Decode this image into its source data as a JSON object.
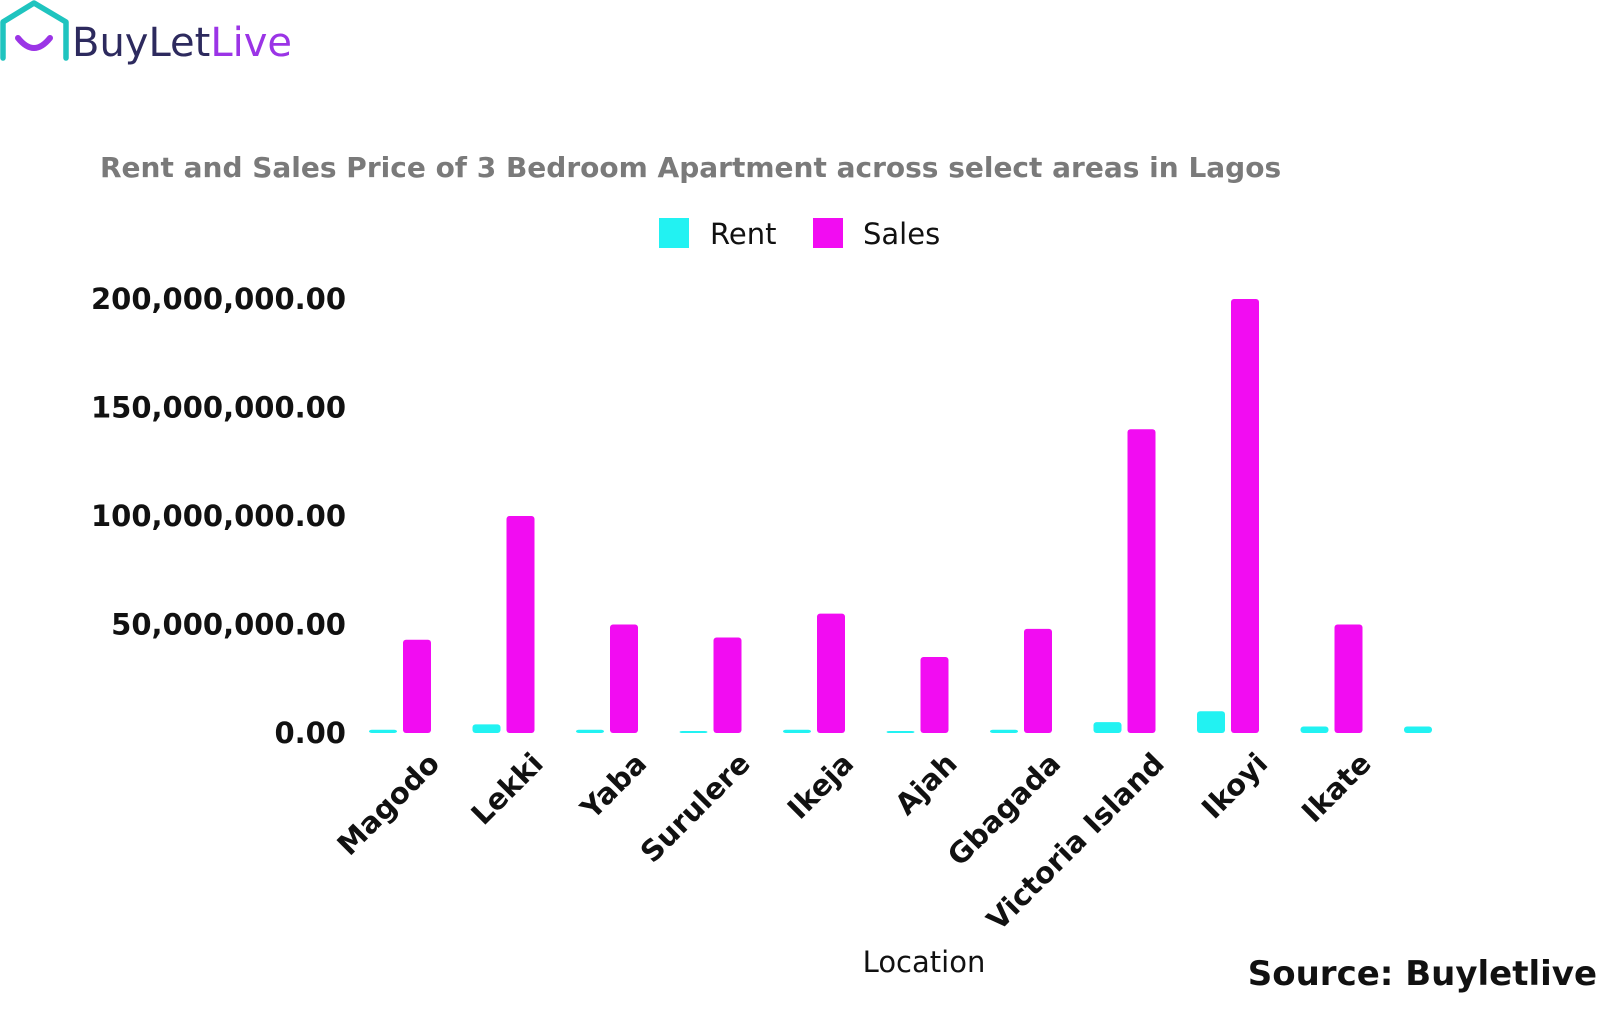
{
  "brand": {
    "logo_part1": "BuyLet",
    "logo_part2": "Live",
    "color_teal": "#1fc4bf",
    "color_dark": "#2d2a5e",
    "color_purple": "#9b34e6"
  },
  "source_text": "Source: Buyletlive",
  "chart_data": {
    "type": "bar",
    "title": "Rent and Sales Price of 3 Bedroom Apartment across select areas in Lagos",
    "xlabel": "Location",
    "ylabel": "",
    "categories": [
      "Magodo",
      "Lekki",
      "Yaba",
      "Surulere",
      "Ikeja",
      "Ajah",
      "Gbagada",
      "Victoria Island",
      "Ikoyi",
      "Ikate",
      ""
    ],
    "series": [
      {
        "name": "Rent",
        "color": "#22f2f2",
        "values": [
          1500000,
          4000000,
          1500000,
          800000,
          1500000,
          800000,
          1500000,
          5000000,
          10000000,
          3000000,
          3000000
        ]
      },
      {
        "name": "Sales",
        "color": "#f20cf2",
        "values": [
          43000000,
          100000000,
          50000000,
          44000000,
          55000000,
          35000000,
          48000000,
          140000000,
          200000000,
          50000000,
          null
        ]
      }
    ],
    "ylim": [
      0,
      200000000
    ],
    "yticks": [
      0,
      50000000,
      100000000,
      150000000,
      200000000
    ],
    "ytick_labels": [
      "0.00",
      "50,000,000.00",
      "100,000,000.00",
      "150,000,000.00",
      "200,000,000.00"
    ],
    "grid": false,
    "legend": "top-center"
  }
}
